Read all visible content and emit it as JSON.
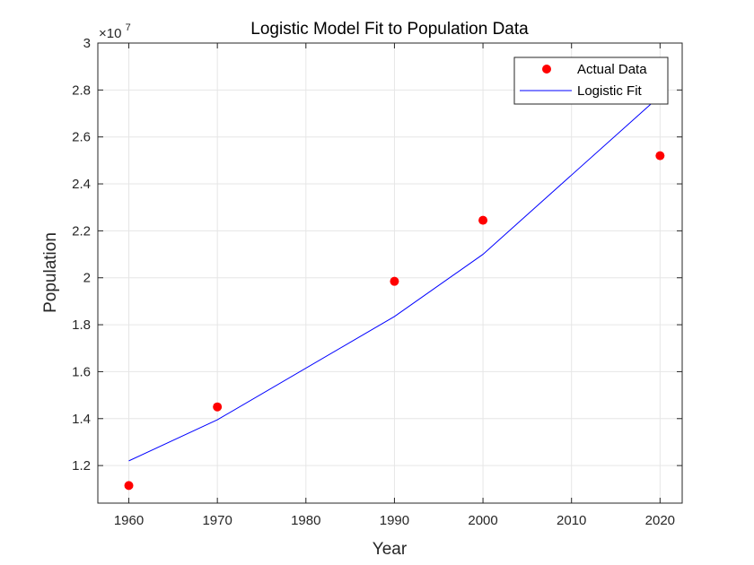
{
  "chart_data": {
    "type": "line",
    "title": "Logistic Model Fit to Population Data",
    "xlabel": "Year",
    "ylabel": "Population",
    "y_exponent_base": "×10",
    "y_exponent_power": "7",
    "xlim": [
      1956.5,
      2022.5
    ],
    "ylim": [
      10400000,
      30000000
    ],
    "x_ticks": [
      1960,
      1970,
      1980,
      1990,
      2000,
      2010,
      2020
    ],
    "y_ticks": [
      12000000,
      14000000,
      16000000,
      18000000,
      20000000,
      22000000,
      24000000,
      26000000,
      28000000,
      30000000
    ],
    "y_tick_labels": [
      "1.2",
      "1.4",
      "1.6",
      "1.8",
      "2",
      "2.2",
      "2.4",
      "2.6",
      "2.8",
      "3"
    ],
    "grid": true,
    "legend_position": "top-right",
    "series": [
      {
        "name": "Actual Data",
        "kind": "scatter",
        "color": "#ff0000",
        "x": [
          1960,
          1970,
          1990,
          2000,
          2020
        ],
        "y": [
          11150000,
          14500000,
          19850000,
          22450000,
          25200000
        ]
      },
      {
        "name": "Logistic Fit",
        "kind": "line",
        "color": "#0000ff",
        "x": [
          1960,
          1970,
          1990,
          2000,
          2020
        ],
        "y": [
          12200000,
          13950000,
          18350000,
          21000000,
          27750000
        ]
      }
    ]
  }
}
